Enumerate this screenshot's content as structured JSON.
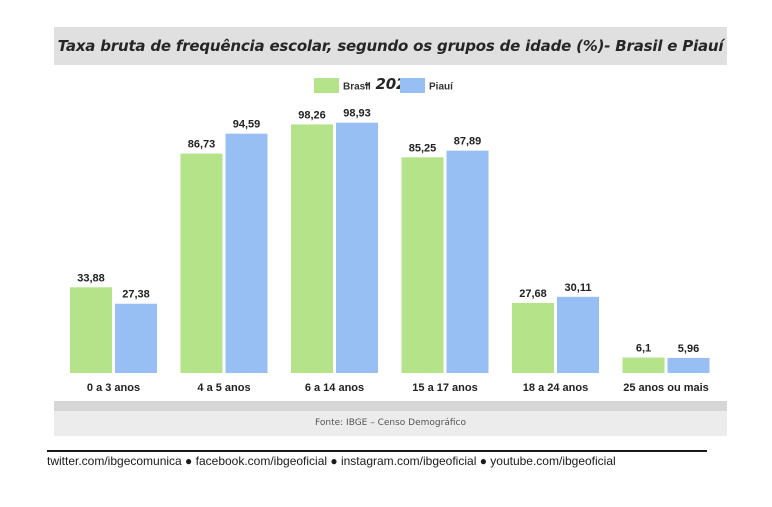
{
  "chart_data": {
    "type": "bar",
    "title": "Taxa bruta de frequência escolar, segundo os grupos de idade (%)- Brasil e Piauí - 2022",
    "categories": [
      "0 a 3 anos",
      "4 a 5 anos",
      "6 a 14 anos",
      "15 a 17 anos",
      "18 a 24 anos",
      "25 anos ou mais"
    ],
    "series": [
      {
        "name": "Brasil",
        "color": "#b5e38a",
        "values": [
          33.88,
          86.73,
          98.26,
          85.25,
          27.68,
          6.1
        ],
        "labels": [
          "33,88",
          "86,73",
          "98,26",
          "85,25",
          "27,68",
          "6,1"
        ]
      },
      {
        "name": "Piauí",
        "color": "#97bff3",
        "values": [
          27.38,
          94.59,
          98.93,
          87.89,
          30.11,
          5.96
        ],
        "labels": [
          "27,38",
          "94,59",
          "98,93",
          "87,89",
          "30,11",
          "5,96"
        ]
      }
    ],
    "ylim": [
      0,
      100
    ],
    "grid": false,
    "legend": "top-center"
  },
  "source": "Fonte: IBGE –  Censo Demográfico",
  "footer": "twitter.com/ibgecomunica ● facebook.com/ibgeoficial ● instagram.com/ibgeoficial ● youtube.com/ibgeoficial"
}
